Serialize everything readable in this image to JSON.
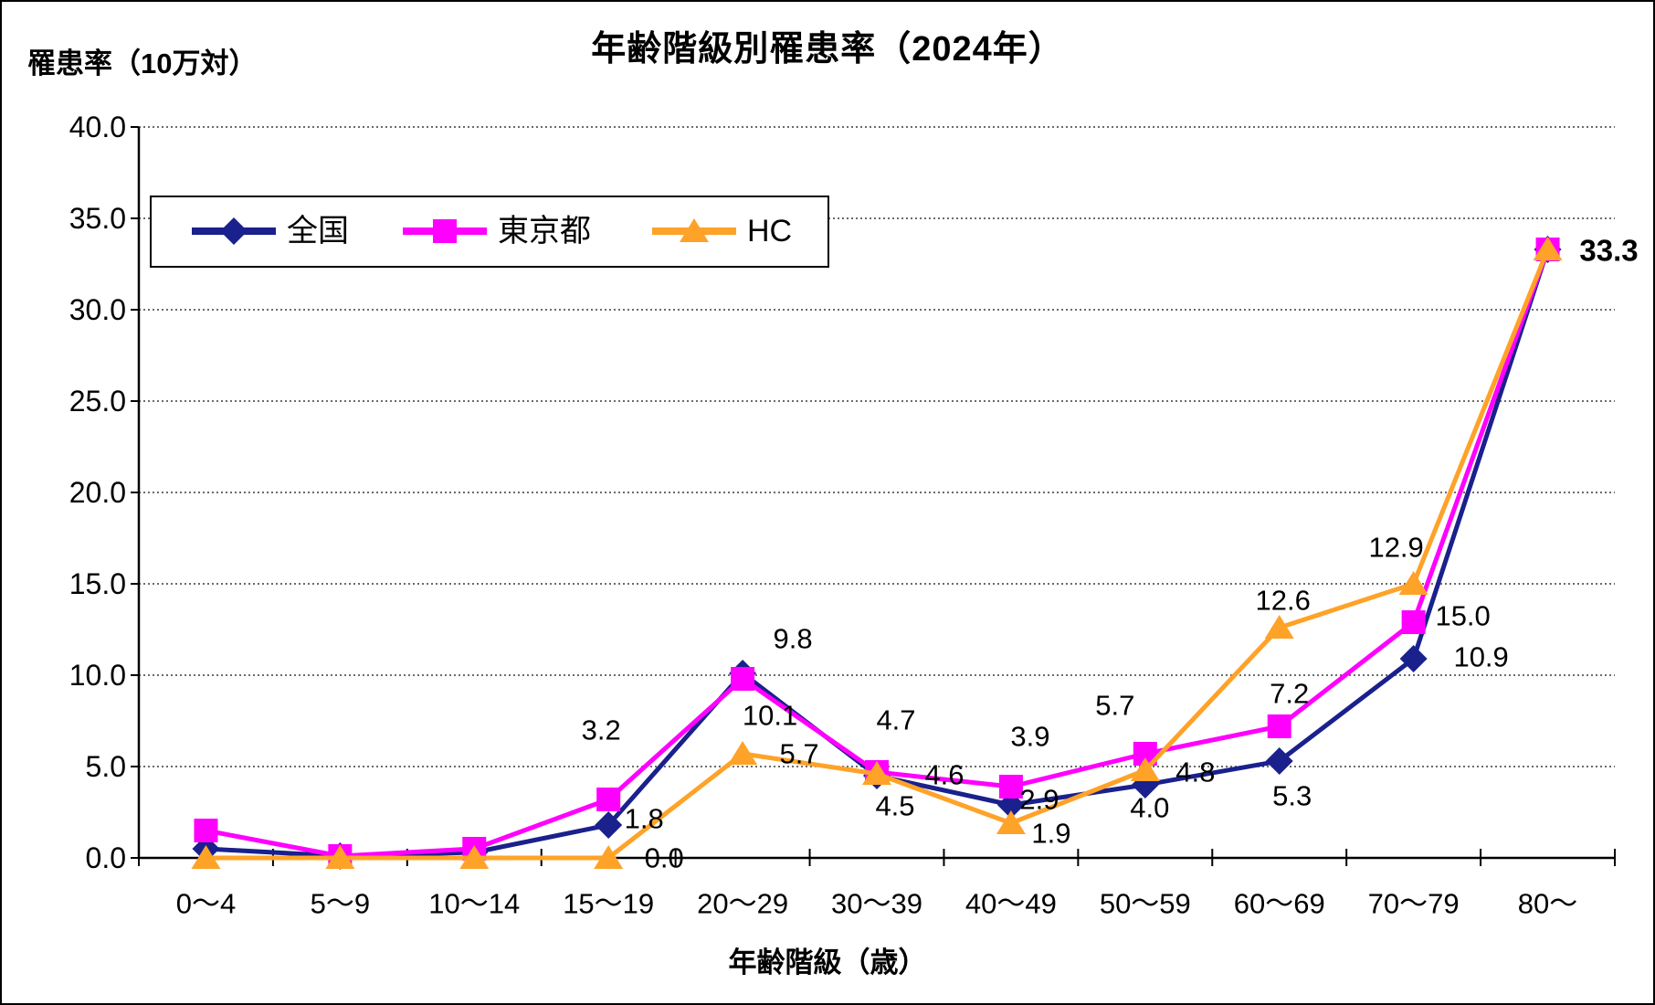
{
  "title": "年齢階級別罹患率（2024年）",
  "y_axis_unit_label": "罹患率（10万対）",
  "x_axis_title": "年齢階級（歳）",
  "legend": {
    "labels": [
      "全国",
      "東京都",
      "HC"
    ]
  },
  "chart_data": {
    "type": "line",
    "title": "年齢階級別罹患率（2024年）",
    "xlabel": "年齢階級（歳）",
    "ylabel": "罹患率（10万対）",
    "ylim": [
      0,
      40
    ],
    "y_tick_interval": 5,
    "y_tick_labels": [
      "0.0",
      "5.0",
      "10.0",
      "15.0",
      "20.0",
      "25.0",
      "30.0",
      "35.0",
      "40.0"
    ],
    "grid": "horizontal-dotted",
    "legend_position": "top-left-inside",
    "categories": [
      "0〜4",
      "5〜9",
      "10〜14",
      "15〜19",
      "20〜29",
      "30〜39",
      "40〜49",
      "50〜59",
      "60〜69",
      "70〜79",
      "80〜"
    ],
    "series": [
      {
        "name": "全国",
        "color": "#1A208C",
        "marker": "diamond",
        "values": [
          0.5,
          0.1,
          0.3,
          1.8,
          10.1,
          4.5,
          2.9,
          4.0,
          5.3,
          10.9,
          33.3
        ],
        "point_labels": [
          {
            "index": 3,
            "text": "1.8",
            "dx": 39,
            "dy": -7
          },
          {
            "index": 4,
            "text": "10.1",
            "dx": 30,
            "dy": 46
          },
          {
            "index": 5,
            "text": "4.5",
            "dx": 20,
            "dy": 33
          },
          {
            "index": 6,
            "text": "2.9",
            "dx": 31,
            "dy": -6
          },
          {
            "index": 7,
            "text": "4.0",
            "dx": 5,
            "dy": 25
          },
          {
            "index": 8,
            "text": "5.3",
            "dx": 14,
            "dy": 38
          },
          {
            "index": 9,
            "text": "10.9",
            "dx": 74,
            "dy": -2
          }
        ]
      },
      {
        "name": "東京都",
        "color": "#FF00FF",
        "marker": "square",
        "values": [
          1.5,
          0.1,
          0.5,
          3.2,
          9.8,
          4.7,
          3.9,
          5.7,
          7.2,
          12.9,
          33.3
        ],
        "point_labels": [
          {
            "index": 3,
            "text": "3.2",
            "dx": -8,
            "dy": -76
          },
          {
            "index": 4,
            "text": "9.8",
            "dx": 55,
            "dy": -44
          },
          {
            "index": 5,
            "text": "4.7",
            "dx": 21,
            "dy": -57
          },
          {
            "index": 6,
            "text": "3.9",
            "dx": 21,
            "dy": -55
          },
          {
            "index": 7,
            "text": "5.7",
            "dx": -33,
            "dy": -53
          },
          {
            "index": 8,
            "text": "7.2",
            "dx": 11,
            "dy": -36
          },
          {
            "index": 9,
            "text": "12.9",
            "dx": -19,
            "dy": -82
          },
          {
            "index": 10,
            "text": "33.3",
            "dx": 67,
            "dy": 1,
            "bold": true
          }
        ]
      },
      {
        "name": "HC",
        "color": "#FFA228",
        "marker": "triangle",
        "values": [
          0.0,
          0.0,
          0.0,
          0.0,
          5.7,
          4.6,
          1.9,
          4.8,
          12.6,
          15.0,
          33.3
        ],
        "point_labels": [
          {
            "index": 3,
            "text": "0.0",
            "dx": 61,
            "dy": 0
          },
          {
            "index": 4,
            "text": "5.7",
            "dx": 62,
            "dy": 0
          },
          {
            "index": 5,
            "text": "4.6",
            "dx": 74,
            "dy": 1
          },
          {
            "index": 6,
            "text": "1.9",
            "dx": 44,
            "dy": 11
          },
          {
            "index": 7,
            "text": "4.8",
            "dx": 55,
            "dy": 2
          },
          {
            "index": 8,
            "text": "12.6",
            "dx": 4,
            "dy": -30
          },
          {
            "index": 9,
            "text": "15.0",
            "dx": 54,
            "dy": 35
          }
        ]
      }
    ]
  }
}
